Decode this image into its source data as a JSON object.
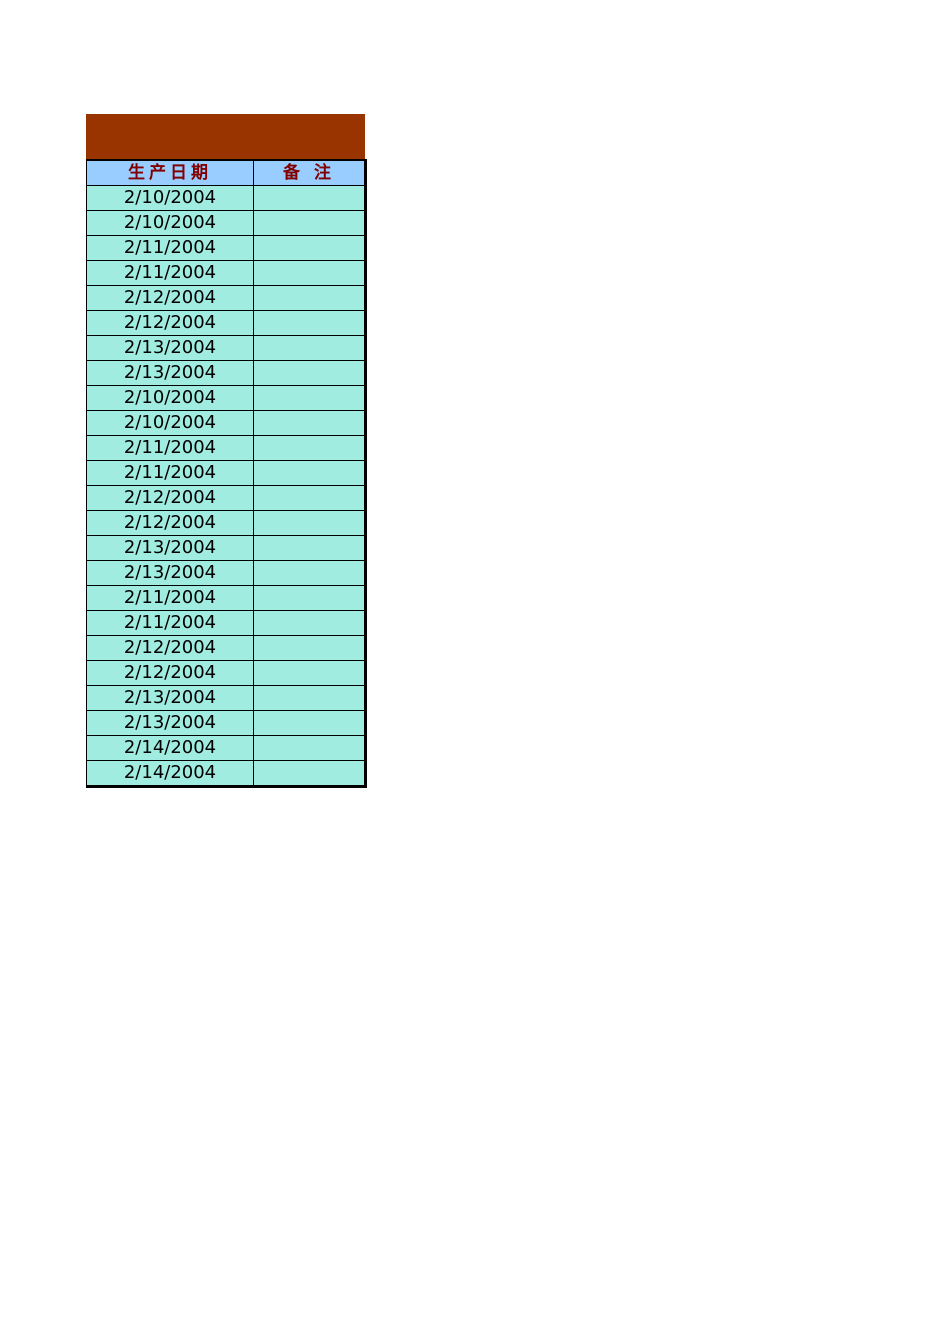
{
  "table": {
    "headers": [
      "生产日期",
      "备 注"
    ],
    "rows": [
      {
        "date": "2/10/2004",
        "note": ""
      },
      {
        "date": "2/10/2004",
        "note": ""
      },
      {
        "date": "2/11/2004",
        "note": ""
      },
      {
        "date": "2/11/2004",
        "note": ""
      },
      {
        "date": "2/12/2004",
        "note": ""
      },
      {
        "date": "2/12/2004",
        "note": ""
      },
      {
        "date": "2/13/2004",
        "note": ""
      },
      {
        "date": "2/13/2004",
        "note": ""
      },
      {
        "date": "2/10/2004",
        "note": ""
      },
      {
        "date": "2/10/2004",
        "note": ""
      },
      {
        "date": "2/11/2004",
        "note": ""
      },
      {
        "date": "2/11/2004",
        "note": ""
      },
      {
        "date": "2/12/2004",
        "note": ""
      },
      {
        "date": "2/12/2004",
        "note": ""
      },
      {
        "date": "2/13/2004",
        "note": ""
      },
      {
        "date": "2/13/2004",
        "note": ""
      },
      {
        "date": "2/11/2004",
        "note": ""
      },
      {
        "date": "2/11/2004",
        "note": ""
      },
      {
        "date": "2/12/2004",
        "note": ""
      },
      {
        "date": "2/12/2004",
        "note": ""
      },
      {
        "date": "2/13/2004",
        "note": ""
      },
      {
        "date": "2/13/2004",
        "note": ""
      },
      {
        "date": "2/14/2004",
        "note": ""
      },
      {
        "date": "2/14/2004",
        "note": ""
      }
    ]
  },
  "colors": {
    "title_band": "#993300",
    "header_bg": "#99ccff",
    "header_text": "#800000",
    "cell_bg": "#a0ece0"
  }
}
